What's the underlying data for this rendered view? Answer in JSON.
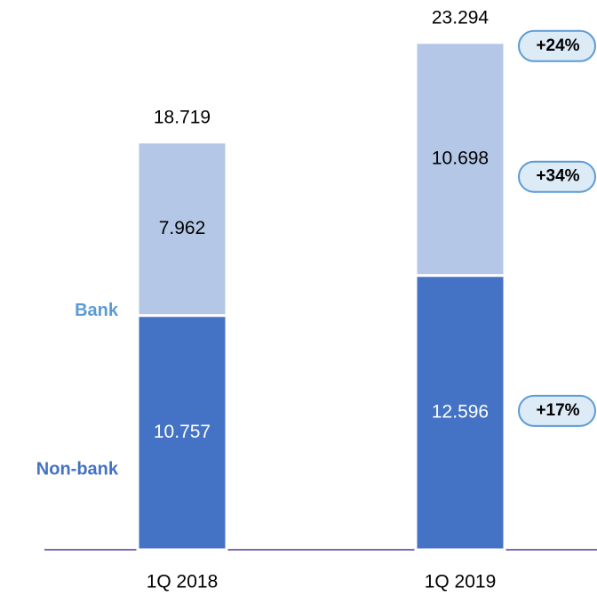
{
  "chart_data": {
    "type": "stacked_bar",
    "categories": [
      "1Q 2018",
      "1Q 2019"
    ],
    "series": [
      {
        "name": "Non-bank",
        "color": "#4472c4",
        "values": [
          10.757,
          12.596
        ]
      },
      {
        "name": "Bank",
        "color": "#b4c7e7",
        "values": [
          7.962,
          10.698
        ]
      }
    ],
    "totals": [
      18.719,
      23.294
    ],
    "annotations": [
      "+24%",
      "+34%",
      "+17%"
    ],
    "ylim": [
      0,
      25
    ]
  }
}
